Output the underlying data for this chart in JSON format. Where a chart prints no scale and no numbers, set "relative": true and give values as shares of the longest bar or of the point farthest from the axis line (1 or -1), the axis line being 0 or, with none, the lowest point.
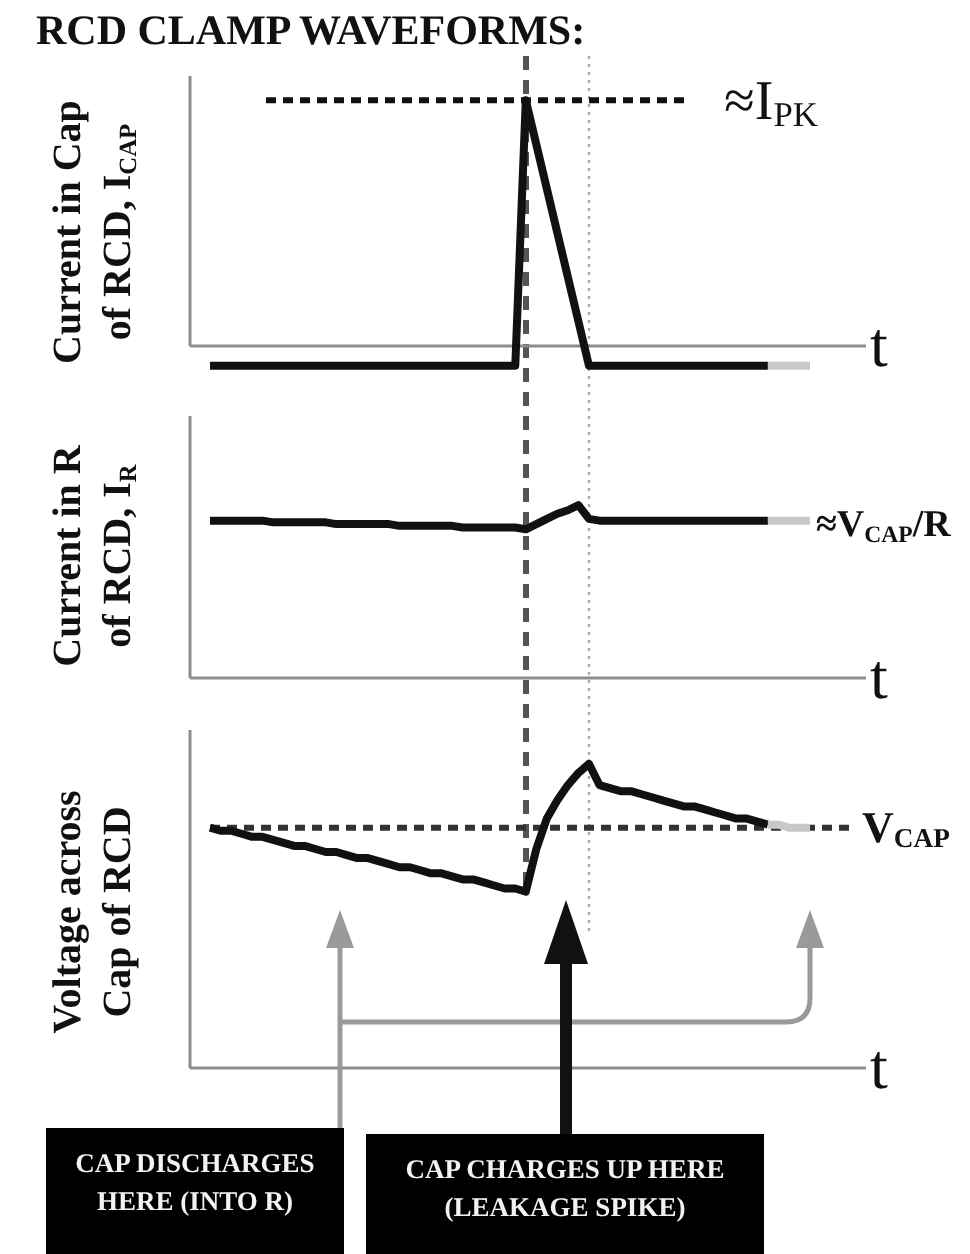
{
  "chart_data": [
    {
      "type": "line",
      "title": "RCD CLAMP WAVEFORMS:",
      "ylabel": "Current in Cap\nof RCD, I$_{CAP}$",
      "xlabel": "t",
      "relative": true,
      "categories": [
        null,
        null,
        null,
        null,
        null,
        null,
        null,
        null,
        null,
        null,
        null,
        null,
        null,
        null,
        null,
        null,
        null,
        null,
        null,
        null,
        null,
        null,
        null,
        null,
        null,
        null,
        null,
        null,
        null,
        null,
        null,
        null,
        null,
        null,
        null,
        null,
        null,
        null,
        null,
        null,
        null,
        null,
        null,
        null,
        null,
        null,
        null,
        null,
        null,
        null,
        null,
        null,
        null,
        null,
        null,
        null,
        null,
        null
      ],
      "series": [
        {
          "color": "#111111",
          "values": [
            -0.08,
            -0.08,
            -0.08,
            -0.08,
            -0.08,
            -0.08,
            -0.08,
            -0.08,
            -0.08,
            -0.08,
            -0.08,
            -0.08,
            -0.08,
            -0.08,
            -0.08,
            -0.08,
            -0.08,
            -0.08,
            -0.08,
            -0.08,
            -0.08,
            -0.08,
            -0.08,
            -0.08,
            -0.08,
            -0.08,
            -0.08,
            -0.08,
            -0.08,
            -0.08,
            1,
            0.82,
            0.64,
            0.46,
            0.28,
            0.1,
            -0.08,
            -0.08,
            -0.08,
            -0.08,
            -0.08,
            -0.08,
            -0.08,
            -0.08,
            -0.08,
            -0.08,
            -0.08,
            -0.08,
            -0.08,
            -0.08,
            -0.08,
            -0.08,
            -0.08,
            -0.08,
            null,
            null,
            null,
            null
          ]
        },
        {
          "color": "#c8c8c8",
          "values": [
            null,
            null,
            null,
            null,
            null,
            null,
            null,
            null,
            null,
            null,
            null,
            null,
            null,
            null,
            null,
            null,
            null,
            null,
            null,
            null,
            null,
            null,
            null,
            null,
            null,
            null,
            null,
            null,
            null,
            null,
            null,
            null,
            null,
            null,
            null,
            null,
            null,
            null,
            null,
            null,
            null,
            null,
            null,
            null,
            null,
            null,
            null,
            null,
            null,
            null,
            null,
            null,
            null,
            -0.08,
            -0.08,
            -0.08,
            -0.08,
            -0.08
          ]
        }
      ],
      "ref_lines": [
        {
          "axis": "y",
          "value": 1,
          "label": "≈I$_{PK}$",
          "color": "#111111",
          "line_style": "dashed"
        }
      ]
    },
    {
      "type": "line",
      "ylabel": "Current in R\nof RCD, I$_{R}$",
      "xlabel": "t",
      "relative": true,
      "categories": [
        null,
        null,
        null,
        null,
        null,
        null,
        null,
        null,
        null,
        null,
        null,
        null,
        null,
        null,
        null,
        null,
        null,
        null,
        null,
        null,
        null,
        null,
        null,
        null,
        null,
        null,
        null,
        null,
        null,
        null,
        null,
        null,
        null,
        null,
        null,
        null,
        null,
        null,
        null,
        null,
        null,
        null,
        null,
        null,
        null,
        null,
        null,
        null,
        null,
        null,
        null,
        null,
        null,
        null,
        null,
        null,
        null,
        null
      ],
      "series": [
        {
          "color": "#111111",
          "values": [
            0.91,
            0.91,
            0.91,
            0.91,
            0.91,
            0.91,
            0.9,
            0.9,
            0.9,
            0.9,
            0.9,
            0.9,
            0.89,
            0.89,
            0.89,
            0.89,
            0.89,
            0.89,
            0.88,
            0.88,
            0.88,
            0.88,
            0.88,
            0.88,
            0.87,
            0.87,
            0.87,
            0.87,
            0.87,
            0.87,
            0.86,
            0.89,
            0.92,
            0.95,
            0.97,
            1,
            0.92,
            0.91,
            0.91,
            0.91,
            0.91,
            0.91,
            0.91,
            0.91,
            0.91,
            0.91,
            0.91,
            0.91,
            0.91,
            0.91,
            0.91,
            0.91,
            0.91,
            0.91,
            null,
            null,
            null,
            null
          ]
        },
        {
          "color": "#c8c8c8",
          "values": [
            null,
            null,
            null,
            null,
            null,
            null,
            null,
            null,
            null,
            null,
            null,
            null,
            null,
            null,
            null,
            null,
            null,
            null,
            null,
            null,
            null,
            null,
            null,
            null,
            null,
            null,
            null,
            null,
            null,
            null,
            null,
            null,
            null,
            null,
            null,
            null,
            null,
            null,
            null,
            null,
            null,
            null,
            null,
            null,
            null,
            null,
            null,
            null,
            null,
            null,
            null,
            null,
            null,
            0.91,
            0.91,
            0.91,
            0.91,
            0.91
          ]
        }
      ],
      "annotations": [
        "≈V$_{CAP}$/R"
      ]
    },
    {
      "type": "line",
      "ylabel": "Voltage across\nCap of RCD",
      "xlabel": "t",
      "relative": true,
      "categories": [
        null,
        null,
        null,
        null,
        null,
        null,
        null,
        null,
        null,
        null,
        null,
        null,
        null,
        null,
        null,
        null,
        null,
        null,
        null,
        null,
        null,
        null,
        null,
        null,
        null,
        null,
        null,
        null,
        null,
        null,
        null,
        null,
        null,
        null,
        null,
        null,
        null,
        null,
        null,
        null,
        null,
        null,
        null,
        null,
        null,
        null,
        null,
        null,
        null,
        null,
        null,
        null,
        null,
        null,
        null,
        null,
        null,
        null
      ],
      "series": [
        {
          "color": "#111111",
          "values": [
            0.79,
            0.78,
            0.78,
            0.77,
            0.76,
            0.76,
            0.75,
            0.74,
            0.73,
            0.73,
            0.72,
            0.71,
            0.71,
            0.7,
            0.69,
            0.69,
            0.68,
            0.67,
            0.66,
            0.66,
            0.65,
            0.64,
            0.64,
            0.63,
            0.62,
            0.62,
            0.61,
            0.6,
            0.59,
            0.59,
            0.58,
            0.72,
            0.82,
            0.88,
            0.93,
            0.97,
            1,
            0.93,
            0.92,
            0.91,
            0.91,
            0.9,
            0.89,
            0.88,
            0.87,
            0.86,
            0.86,
            0.85,
            0.84,
            0.83,
            0.82,
            0.82,
            0.81,
            0.8,
            null,
            null,
            null,
            null
          ]
        },
        {
          "color": "#c8c8c8",
          "values": [
            null,
            null,
            null,
            null,
            null,
            null,
            null,
            null,
            null,
            null,
            null,
            null,
            null,
            null,
            null,
            null,
            null,
            null,
            null,
            null,
            null,
            null,
            null,
            null,
            null,
            null,
            null,
            null,
            null,
            null,
            null,
            null,
            null,
            null,
            null,
            null,
            null,
            null,
            null,
            null,
            null,
            null,
            null,
            null,
            null,
            null,
            null,
            null,
            null,
            null,
            null,
            null,
            null,
            0.8,
            0.8,
            0.79,
            0.79,
            0.79
          ]
        }
      ],
      "ref_lines": [
        {
          "axis": "y",
          "value": 0.79,
          "label": "V$_{CAP}$",
          "color": "#333333",
          "line_style": "dashed"
        }
      ],
      "annotations": [
        "CAP DISCHARGES\nHERE (INTO R)",
        "CAP CHARGES UP HERE\n(LEAKAGE SPIKE)"
      ]
    }
  ]
}
